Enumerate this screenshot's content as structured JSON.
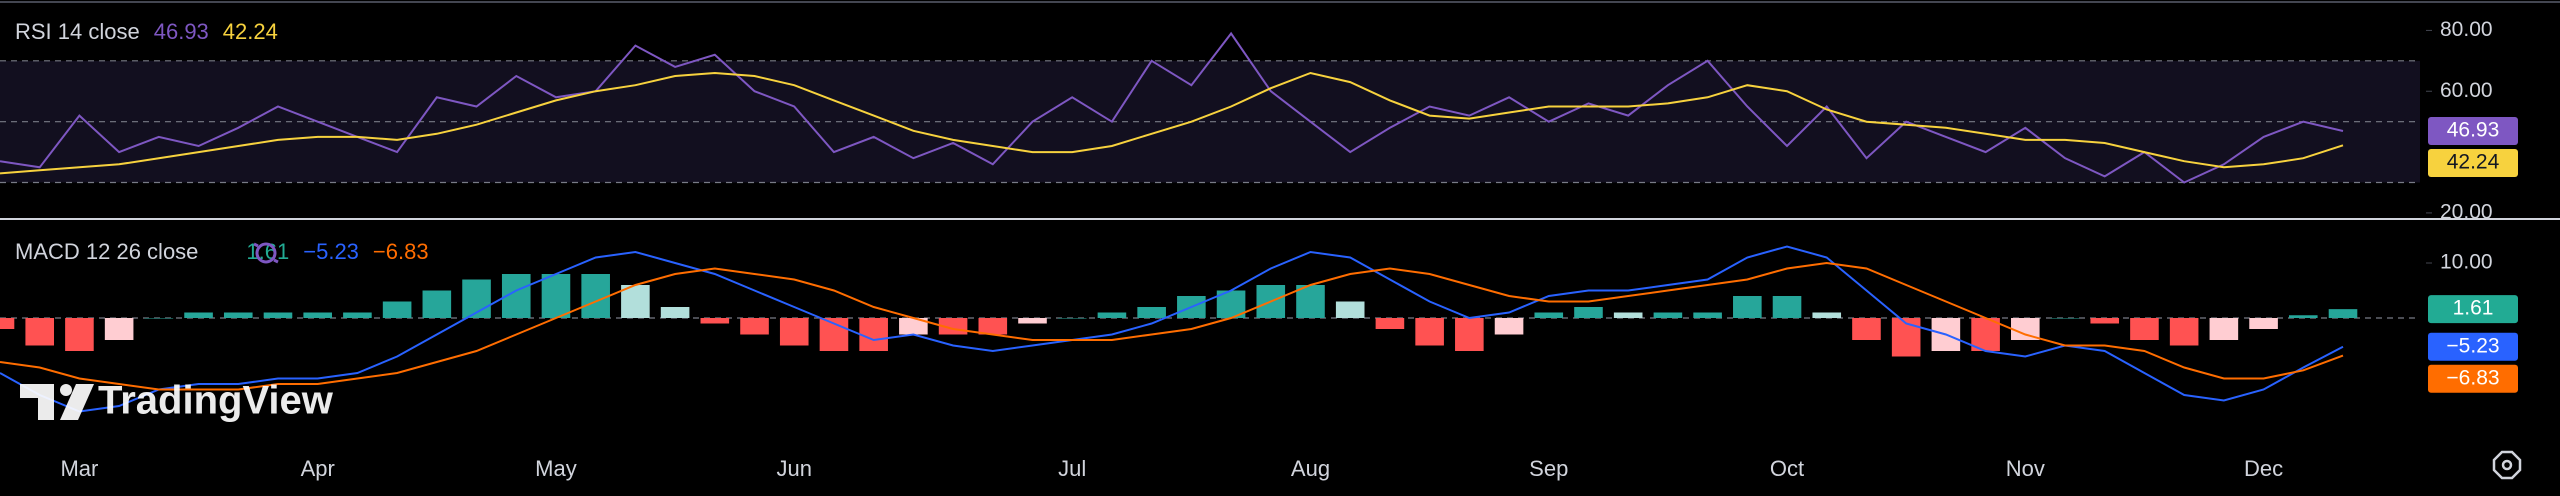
{
  "chart_data": [
    {
      "type": "line",
      "title": "RSI 14 close",
      "ylim": [
        18,
        90
      ],
      "yticks": [
        {
          "value": 80,
          "label": "80.00"
        },
        {
          "value": 60,
          "label": "60.00"
        },
        {
          "value": 20,
          "label": "20.00"
        }
      ],
      "band_lines": [
        30,
        50,
        70
      ],
      "band_color": "#120f1f",
      "series": [
        {
          "name": "RSI",
          "color": "#7e57c2",
          "values": [
            37,
            35,
            52,
            40,
            45,
            42,
            48,
            55,
            50,
            45,
            40,
            58,
            55,
            65,
            58,
            60,
            75,
            68,
            72,
            60,
            55,
            40,
            45,
            38,
            43,
            36,
            50,
            58,
            50,
            70,
            62,
            79,
            60,
            50,
            40,
            48,
            55,
            52,
            58,
            50,
            56,
            52,
            62,
            70,
            55,
            42,
            55,
            38,
            50,
            45,
            40,
            48,
            38,
            32,
            40,
            30,
            36,
            45,
            50,
            46.93
          ]
        },
        {
          "name": "RSI-based MA",
          "color": "#f7d23e",
          "values": [
            33,
            34,
            35,
            36,
            38,
            40,
            42,
            44,
            45,
            45,
            44,
            46,
            49,
            53,
            57,
            60,
            62,
            65,
            66,
            65,
            62,
            57,
            52,
            47,
            44,
            42,
            40,
            40,
            42,
            46,
            50,
            55,
            61,
            66,
            63,
            57,
            52,
            51,
            53,
            55,
            55,
            55,
            56,
            58,
            62,
            60,
            54,
            50,
            49,
            48,
            46,
            44,
            44,
            43,
            40,
            37,
            35,
            36,
            38,
            42.24
          ]
        }
      ]
    },
    {
      "type": "combo",
      "title": "MACD 12 26 close",
      "watermark": "TradingView",
      "categories": [
        null,
        null,
        "Mar",
        null,
        null,
        null,
        null,
        null,
        "Apr",
        null,
        null,
        null,
        null,
        null,
        "May",
        null,
        null,
        null,
        null,
        null,
        "Jun",
        null,
        null,
        null,
        null,
        null,
        null,
        "Jul",
        null,
        null,
        null,
        null,
        null,
        "Aug",
        null,
        null,
        null,
        null,
        null,
        "Sep",
        null,
        null,
        null,
        null,
        null,
        "Oct",
        null,
        null,
        null,
        null,
        null,
        "Nov",
        null,
        null,
        null,
        null,
        null,
        "Dec",
        null,
        null
      ],
      "ylim": [
        -24,
        18
      ],
      "yticks": [
        {
          "value": 10,
          "label": "10.00"
        }
      ],
      "zero_line": true,
      "series": [
        {
          "name": "Histogram",
          "type": "bar",
          "color": "#26a69a",
          "color_fading": "#b2dfdb",
          "negative_color": "#ff5252",
          "negative_color_fading": "#ffcdd2",
          "label_color": "#22ab94",
          "values": [
            -2,
            -5,
            -6,
            -4,
            0,
            1,
            1,
            1,
            1,
            1,
            3,
            5,
            7,
            8,
            8,
            8,
            6,
            2,
            -1,
            -3,
            -5,
            -6,
            -6,
            -3,
            -3,
            -3,
            -1,
            0,
            1,
            2,
            4,
            5,
            6,
            6,
            3,
            -2,
            -5,
            -6,
            -3,
            1,
            2,
            1,
            1,
            1,
            4,
            4,
            1,
            -4,
            -7,
            -6,
            -6,
            -4,
            0,
            -1,
            -4,
            -5,
            -4,
            -2,
            0.5,
            1.61
          ]
        },
        {
          "name": "MACD",
          "type": "line",
          "color": "#2962ff",
          "last_label": "−5.23",
          "values": [
            -10,
            -14,
            -17,
            -16,
            -13,
            -12,
            -12,
            -11,
            -11,
            -10,
            -7,
            -3,
            1,
            5,
            8,
            11,
            12,
            10,
            8,
            5,
            2,
            -1,
            -4,
            -3,
            -5,
            -6,
            -5,
            -4,
            -3,
            -1,
            2,
            5,
            9,
            12,
            11,
            7,
            3,
            0,
            1,
            4,
            5,
            5,
            6,
            7,
            11,
            13,
            11,
            5,
            -1,
            -3,
            -6,
            -7,
            -5,
            -6,
            -10,
            -14,
            -15,
            -13,
            -9,
            -5.23
          ]
        },
        {
          "name": "Signal",
          "type": "line",
          "color": "#ff6d00",
          "last_label": "−6.83",
          "values": [
            -8,
            -9,
            -11,
            -12,
            -13,
            -13,
            -13,
            -12,
            -12,
            -11,
            -10,
            -8,
            -6,
            -3,
            0,
            3,
            6,
            8,
            9,
            8,
            7,
            5,
            2,
            0,
            -2,
            -3,
            -4,
            -4,
            -4,
            -3,
            -2,
            0,
            3,
            6,
            8,
            9,
            8,
            6,
            4,
            3,
            3,
            4,
            5,
            6,
            7,
            9,
            10,
            9,
            6,
            3,
            0,
            -3,
            -5,
            -5,
            -6,
            -9,
            -11,
            -11,
            -9.5,
            -6.83
          ]
        }
      ]
    }
  ]
}
